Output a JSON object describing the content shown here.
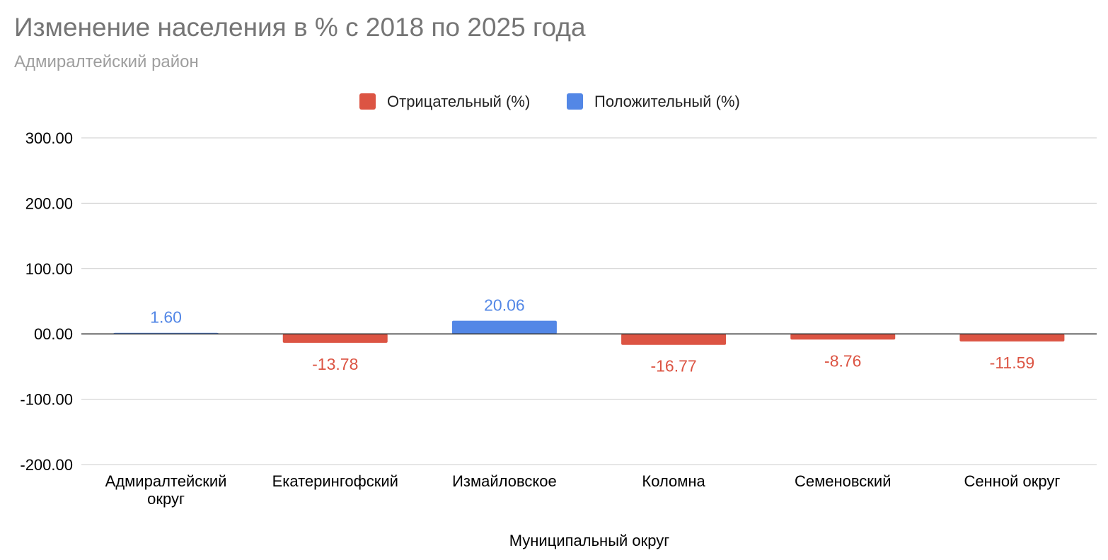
{
  "title": "Изменение населения в % с 2018 по 2025 года",
  "subtitle": "Адмиралтейский район",
  "colors": {
    "negative": "#dc5443",
    "positive": "#5387e6",
    "grid": "#cccccc",
    "zero_line": "#333333"
  },
  "chart_data": {
    "type": "bar",
    "title": "Изменение населения в % с 2018 по 2025 года",
    "subtitle": "Адмиралтейский район",
    "xlabel": "Муниципальный округ",
    "ylabel": "",
    "ylim": [
      -200,
      300
    ],
    "yticks": [
      300,
      200,
      100,
      0,
      -100,
      -200
    ],
    "ytick_labels": [
      "300.00",
      "200.00",
      "100.00",
      "00.00",
      "-100.00",
      "-200.00"
    ],
    "grid": true,
    "legend_position": "top-center",
    "categories": [
      [
        "Адмиралтейский",
        "округ"
      ],
      [
        "Екатерингофский"
      ],
      [
        "Измайловское"
      ],
      [
        "Коломна"
      ],
      [
        "Семеновский"
      ],
      [
        "Сенной округ"
      ]
    ],
    "series": [
      {
        "name": "Отрицательный (%)",
        "color": "#dc5443",
        "values": [
          null,
          -13.78,
          null,
          -16.77,
          -8.76,
          -11.59
        ],
        "labels": [
          "",
          "-13.78",
          "",
          "-16.77",
          "-8.76",
          "-11.59"
        ]
      },
      {
        "name": "Положительный (%)",
        "color": "#5387e6",
        "values": [
          1.6,
          null,
          20.06,
          null,
          null,
          null
        ],
        "labels": [
          "1.60",
          "",
          "20.06",
          "",
          "",
          ""
        ]
      }
    ]
  }
}
